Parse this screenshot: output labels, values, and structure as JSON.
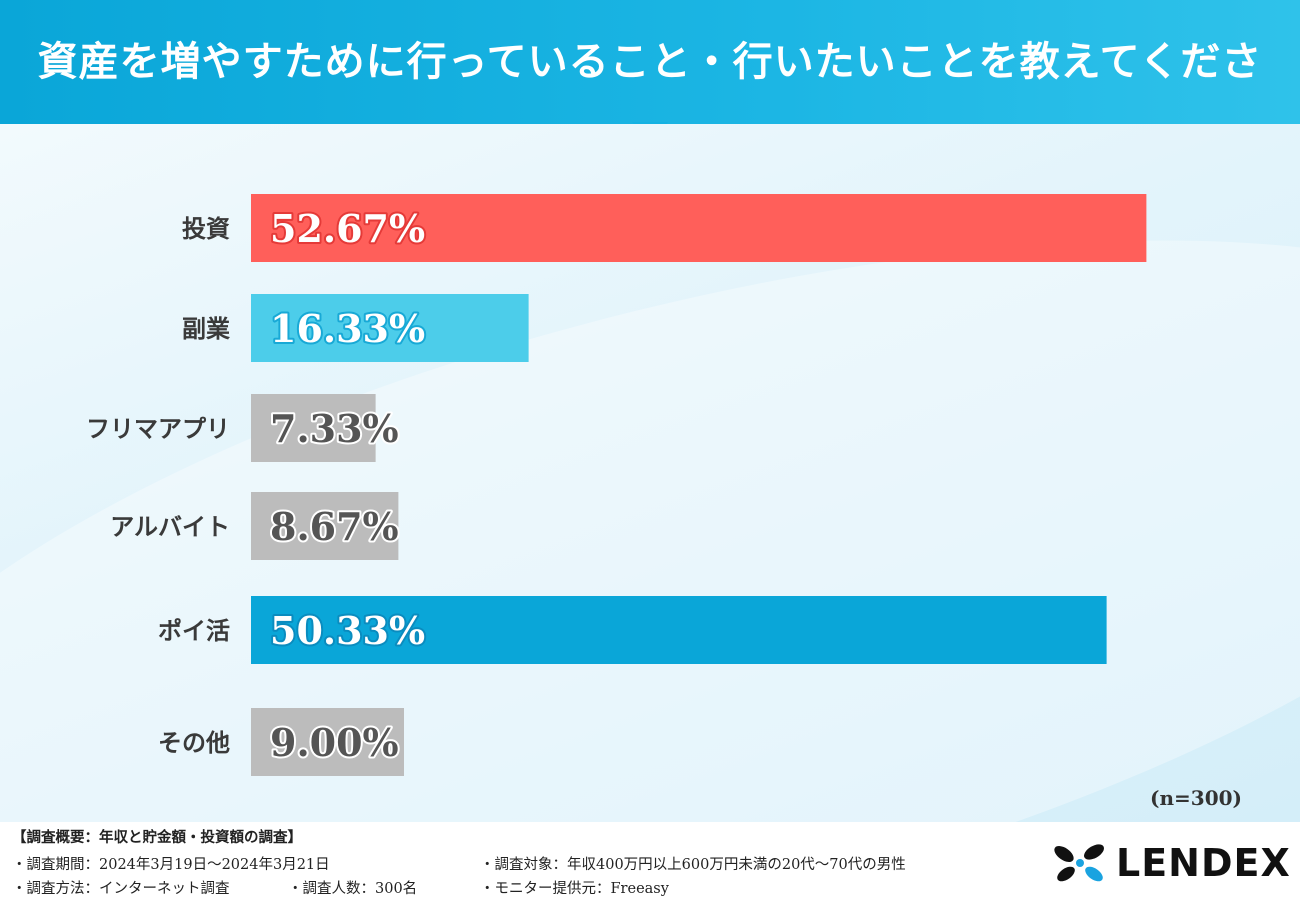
{
  "header": {
    "title": "資産を増やすために行っていること・行いたいことを教えてください。"
  },
  "chart_data": {
    "type": "bar",
    "orientation": "horizontal",
    "title": "資産を増やすために行っていること・行いたいことを教えてください。",
    "categories": [
      "投資",
      "副業",
      "フリマアプリ",
      "アルバイト",
      "ポイ活",
      "その他"
    ],
    "values": [
      52.67,
      16.33,
      7.33,
      8.67,
      50.33,
      9.0
    ],
    "value_labels": [
      "52.67%",
      "16.33%",
      "7.33%",
      "8.67%",
      "50.33%",
      "9.00%"
    ],
    "unit": "%",
    "xlim": [
      0,
      60
    ],
    "grid": false,
    "legend": "none",
    "colors": [
      "#ff5f5a",
      "#4ccdea",
      "#bcbcbc",
      "#bcbcbc",
      "#0aa6d8",
      "#bcbcbc"
    ],
    "label_fill": [
      "#ffffff",
      "#ffffff",
      "#555555",
      "#555555",
      "#ffffff",
      "#555555"
    ],
    "label_stroke": [
      "#e53a38",
      "#18a9d6",
      "#ffffff",
      "#ffffff",
      "#0a8cbf",
      "#ffffff"
    ],
    "sample_note": "(n=300)"
  },
  "footer": {
    "heading": "【調査概要：年収と貯金額・投資額の調査】",
    "period": "・調査期間：2024年3月19日〜2024年3月21日",
    "method": "・調査方法：インターネット調査",
    "respondents": "・調査人数：300名",
    "target": "・調査対象：年収400万円以上600万円未満の20代〜70代の男性",
    "provider": "・モニター提供元：Freeasy",
    "logo_text": "LENDEX",
    "logo_icon": "lendex-petal-icon"
  }
}
